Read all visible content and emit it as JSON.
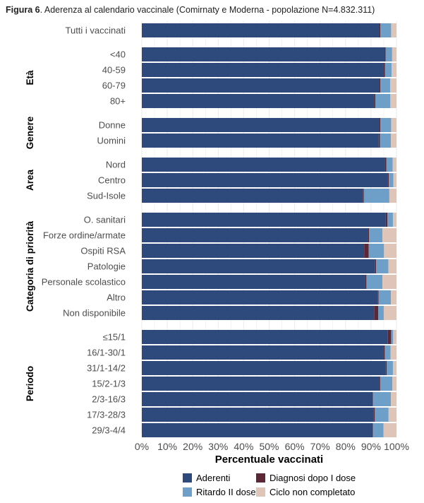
{
  "caption": {
    "prefix": "Figura 6",
    "text": ". Aderenza al calendario vaccinale (Comirnaty e Moderna - popolazione N=4.832.311)"
  },
  "colors": {
    "Aderenti": "#2e4a7d",
    "Diagnosi dopo I dose": "#5c2836",
    "Ritardo II dose": "#6d9fc9",
    "Ciclo non completato": "#dfc5b8"
  },
  "chart_data": {
    "type": "bar",
    "orientation": "horizontal",
    "stacked": true,
    "xlabel": "Percentuale vaccinati",
    "xlim": [
      0,
      100
    ],
    "xticks": [
      "0%",
      "10%",
      "20%",
      "30%",
      "40%",
      "50%",
      "60%",
      "70%",
      "80%",
      "90%",
      "100%"
    ],
    "grid": true,
    "legend_position": "bottom",
    "series_names": [
      "Aderenti",
      "Diagnosi dopo I dose",
      "Ritardo II dose",
      "Ciclo non completato"
    ],
    "legend_order": [
      "Aderenti",
      "Diagnosi dopo I dose",
      "Ritardo II dose",
      "Ciclo non completato"
    ],
    "groups": [
      {
        "name": "",
        "rows": [
          {
            "label": "Tutti i vaccinati",
            "values": [
              93.2,
              0.5,
              4.2,
              2.1
            ]
          }
        ]
      },
      {
        "name": "Età",
        "rows": [
          {
            "label": "<40",
            "values": [
              95.3,
              0.4,
              2.6,
              1.7
            ]
          },
          {
            "label": "40-59",
            "values": [
              95.0,
              0.5,
              2.6,
              1.9
            ]
          },
          {
            "label": "60-79",
            "values": [
              93.2,
              0.5,
              3.8,
              2.5
            ]
          },
          {
            "label": "80+",
            "values": [
              91.2,
              0.5,
              5.9,
              2.4
            ]
          }
        ]
      },
      {
        "name": "Genere",
        "rows": [
          {
            "label": "Donne",
            "values": [
              93.2,
              0.5,
              4.2,
              2.1
            ]
          },
          {
            "label": "Uomini",
            "values": [
              93.0,
              0.5,
              4.3,
              2.2
            ]
          }
        ]
      },
      {
        "name": "Area",
        "rows": [
          {
            "label": "Nord",
            "values": [
              95.4,
              0.6,
              2.5,
              1.5
            ]
          },
          {
            "label": "Centro",
            "values": [
              96.5,
              0.5,
              1.8,
              1.2
            ]
          },
          {
            "label": "Sud-Isole",
            "values": [
              86.8,
              0.4,
              10.0,
              2.8
            ]
          }
        ]
      },
      {
        "name": "Categoria di priorità",
        "rows": [
          {
            "label": "O. sanitari",
            "values": [
              95.8,
              0.6,
              2.2,
              1.4
            ]
          },
          {
            "label": "Forze ordine/armate",
            "values": [
              88.8,
              0.4,
              5.3,
              5.5
            ]
          },
          {
            "label": "Ospiti RSA",
            "values": [
              87.3,
              1.8,
              6.0,
              4.9
            ]
          },
          {
            "label": "Patologie",
            "values": [
              91.6,
              0.4,
              4.8,
              3.2
            ]
          },
          {
            "label": "Personale scolastico",
            "values": [
              87.8,
              0.4,
              6.3,
              5.5
            ]
          },
          {
            "label": "Altro",
            "values": [
              92.6,
              0.4,
              4.8,
              2.2
            ]
          },
          {
            "label": "Non disponibile",
            "values": [
              91.2,
              1.6,
              2.2,
              5.0
            ]
          }
        ]
      },
      {
        "name": "Periodo",
        "rows": [
          {
            "label": "≤15/1",
            "values": [
              96.6,
              1.3,
              0.8,
              1.3
            ]
          },
          {
            "label": "16/1-30/1",
            "values": [
              95.0,
              0.4,
              2.3,
              2.3
            ]
          },
          {
            "label": "31/1-14/2",
            "values": [
              95.8,
              0.4,
              2.4,
              1.4
            ]
          },
          {
            "label": "15/2-1/3",
            "values": [
              93.2,
              0.4,
              4.8,
              1.6
            ]
          },
          {
            "label": "2/3-16/3",
            "values": [
              90.3,
              0.4,
              7.1,
              2.2
            ]
          },
          {
            "label": "17/3-28/3",
            "values": [
              91.1,
              0.4,
              5.4,
              3.1
            ]
          },
          {
            "label": "29/3-4/4",
            "values": [
              90.3,
              0.4,
              4.2,
              5.1
            ]
          }
        ]
      }
    ]
  }
}
